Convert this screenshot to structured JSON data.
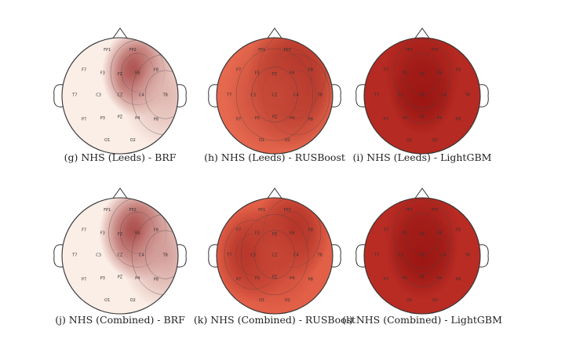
{
  "electrode_labels": [
    "FP1",
    "FP2",
    "F7",
    "F3",
    "FZ",
    "F4",
    "F8",
    "T7",
    "C3",
    "CZ",
    "C4",
    "T8",
    "P7",
    "P3",
    "PZ",
    "P4",
    "P8",
    "O1",
    "O2"
  ],
  "panels": [
    {
      "id": "g",
      "caption": "(g) NHS (Leeds) - BRF",
      "background": "#fbeee6",
      "blobs": [
        {
          "electrode": "F4",
          "intensity": 0.85,
          "spread": 0.28
        },
        {
          "electrode": "T8",
          "intensity": 0.25,
          "spread": 0.35
        }
      ]
    },
    {
      "id": "h",
      "caption": "(h) NHS (Leeds) - RUSBoost",
      "background": "#e6694f",
      "blobs": [
        {
          "electrode": "F4",
          "intensity": 0.75,
          "spread": 0.35
        },
        {
          "electrode": "C4",
          "intensity": 0.55,
          "spread": 0.35
        },
        {
          "electrode": "CZ",
          "intensity": 0.35,
          "spread": 0.4
        }
      ]
    },
    {
      "id": "i",
      "caption": "(i) NHS (Leeds) - LightGBM",
      "background": "#b52a22",
      "blobs": [
        {
          "electrode": "CZ",
          "intensity": 0.8,
          "spread": 0.25
        },
        {
          "electrode": "FZ",
          "intensity": 0.5,
          "spread": 0.3
        }
      ]
    },
    {
      "id": "j",
      "caption": "(j) NHS (Combined) - BRF",
      "background": "#fbeee6",
      "blobs": [
        {
          "electrode": "F4",
          "intensity": 0.85,
          "spread": 0.3
        },
        {
          "electrode": "T8",
          "intensity": 0.35,
          "spread": 0.35
        }
      ]
    },
    {
      "id": "k",
      "caption": "(k) NHS (Combined) - RUSBoost",
      "background": "#e26048",
      "blobs": [
        {
          "electrode": "C3",
          "intensity": 0.7,
          "spread": 0.3
        },
        {
          "electrode": "F4",
          "intensity": 0.7,
          "spread": 0.3
        },
        {
          "electrode": "CZ",
          "intensity": 0.3,
          "spread": 0.35
        }
      ]
    },
    {
      "id": "l",
      "caption": "(l) NHS (Combined) - LightGBM",
      "background": "#b82c24",
      "blobs": [
        {
          "electrode": "CZ",
          "intensity": 0.8,
          "spread": 0.28
        },
        {
          "electrode": "FZ",
          "intensity": 0.5,
          "spread": 0.3
        }
      ]
    }
  ],
  "colors": {
    "low": "#fdf3ee",
    "high": "#8a0a0a",
    "outline": "#333333"
  }
}
